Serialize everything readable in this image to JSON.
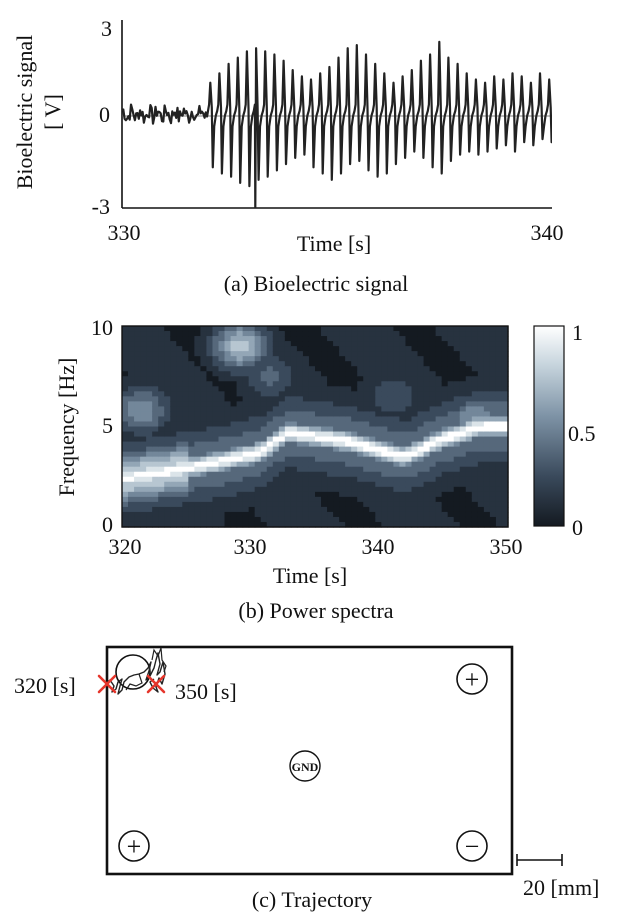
{
  "chart_data": [
    {
      "type": "line",
      "caption": "(a) Bioelectric signal",
      "xlabel": "Time [s]",
      "ylabel_line1": "Bioelectric signal",
      "ylabel_line2": "[ V]",
      "xlim": [
        330,
        340
      ],
      "ylim": [
        -3,
        3
      ],
      "x_ticks": [
        "330",
        "340"
      ],
      "y_ticks": [
        "3",
        "0",
        "-3"
      ],
      "baseline": 0.0,
      "phase1": {
        "start": 330.0,
        "end": 332.0,
        "amp_max": 0.45,
        "amp_min": -0.35
      },
      "phase2": {
        "start": 332.0,
        "end": 340.0,
        "period": 0.213,
        "peaks": [
          1.0,
          1.3,
          1.6,
          1.8,
          2.0,
          2.1,
          2.0,
          1.9,
          1.7,
          1.4,
          1.2,
          1.1,
          1.3,
          1.5,
          1.8,
          2.1,
          2.2,
          1.9,
          1.6,
          1.3,
          1.0,
          1.2,
          1.4,
          1.7,
          1.9,
          2.3,
          1.8,
          1.6,
          1.3,
          1.1,
          1.0,
          1.2,
          1.1,
          1.3,
          1.2,
          1.0,
          1.3,
          1.1
        ],
        "troughs": [
          -1.7,
          -1.9,
          -2.0,
          -2.2,
          -2.3,
          -2.1,
          -2.0,
          -1.8,
          -1.6,
          -1.4,
          -1.3,
          -1.7,
          -1.9,
          -2.1,
          -1.9,
          -1.6,
          -1.5,
          -1.8,
          -2.0,
          -1.9,
          -1.6,
          -1.4,
          -1.2,
          -1.4,
          -1.7,
          -1.9,
          -1.5,
          -1.3,
          -1.2,
          -1.3,
          -1.2,
          -1.1,
          -1.0,
          -1.2,
          -0.9,
          -1.0,
          -0.8,
          -0.9
        ]
      },
      "spike": {
        "x": 333.1,
        "y": -3.0
      }
    },
    {
      "type": "heatmap",
      "caption": "(b) Power spectra",
      "xlabel": "Time [s]",
      "ylabel": "Frequency [Hz]",
      "xlim": [
        320,
        350
      ],
      "ylim": [
        0,
        10
      ],
      "x_ticks": [
        "320",
        "330",
        "340",
        "350"
      ],
      "y_ticks": [
        "10",
        "5",
        "0"
      ],
      "colorbar": {
        "range": [
          0,
          1
        ],
        "ticks": [
          "1",
          "0.5",
          "0"
        ],
        "colors": [
          "#141a21",
          "#3a4a5c",
          "#7e93a6",
          "#c5d3dc",
          "#ffffff"
        ]
      },
      "ridge": {
        "t": [
          320,
          324,
          328,
          330,
          331,
          332,
          333,
          336,
          338,
          340,
          342,
          345,
          348,
          350
        ],
        "f": [
          2.4,
          2.8,
          3.3,
          3.6,
          3.8,
          4.3,
          4.7,
          4.4,
          4.2,
          3.8,
          3.5,
          4.4,
          5.0,
          5.0
        ]
      },
      "blobs": [
        {
          "t": 329.2,
          "f": 9.0,
          "v": 0.75
        },
        {
          "t": 321.5,
          "f": 5.8,
          "v": 0.55
        },
        {
          "t": 347.5,
          "f": 5.3,
          "v": 0.6
        },
        {
          "t": 331.5,
          "f": 7.5,
          "v": 0.35
        },
        {
          "t": 341.0,
          "f": 6.5,
          "v": 0.3
        }
      ]
    },
    {
      "type": "diagram",
      "caption": "(c) Trajectory",
      "labels": {
        "start_time": "320 [s]",
        "end_time": "350 [s]",
        "gnd": "GND",
        "plus": "+",
        "minus": "−"
      },
      "scale_bar": "20 [mm]",
      "marker_color": "#e5352b"
    }
  ]
}
